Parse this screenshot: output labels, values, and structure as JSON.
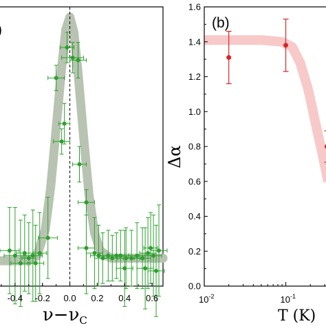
{
  "chart_data": [
    {
      "panel_label": "(a)",
      "visible_panel_label": ")",
      "type": "scatter",
      "xlabel": "ν−ν",
      "xlabel_subscript": "C",
      "xlim": [
        -0.52,
        0.68
      ],
      "ylim": [
        -0.1,
        1.0
      ],
      "x_ticks": [
        "-0.4",
        "-0.2",
        "0.0",
        "0.2",
        "0.4",
        "0.6"
      ],
      "vertical_line_x": 0.0,
      "colors": {
        "points": "#2ca02c",
        "fit": "#b8c3b2"
      },
      "fit_curve": {
        "x": [
          -0.52,
          -0.3,
          -0.24,
          -0.18,
          -0.14,
          -0.1,
          -0.06,
          -0.03,
          0.0,
          0.03,
          0.06,
          0.1,
          0.14,
          0.18,
          0.22,
          0.3,
          0.68
        ],
        "y": [
          0.0,
          0.0,
          0.02,
          0.12,
          0.29,
          0.52,
          0.76,
          0.91,
          0.96,
          0.9,
          0.74,
          0.49,
          0.26,
          0.11,
          0.04,
          0.01,
          0.01
        ]
      },
      "points": [
        {
          "x": -0.02,
          "y": 0.84,
          "xerr": 0.05,
          "yerr": 0.06
        },
        {
          "x": 0.02,
          "y": 0.8,
          "xerr": 0.08,
          "yerr": 0.06
        },
        {
          "x": 0.06,
          "y": 0.79,
          "xerr": 0.06,
          "yerr": 0.07
        },
        {
          "x": -0.1,
          "y": 0.72,
          "xerr": 0.06,
          "yerr": 0.05
        },
        {
          "x": -0.04,
          "y": 0.54,
          "xerr": 0.04,
          "yerr": 0.08
        },
        {
          "x": -0.06,
          "y": 0.47,
          "xerr": 0.06,
          "yerr": 0.05
        },
        {
          "x": 0.07,
          "y": 0.38,
          "xerr": 0.05,
          "yerr": 0.07
        },
        {
          "x": 0.12,
          "y": 0.23,
          "xerr": 0.06,
          "yerr": 0.05
        },
        {
          "x": -0.16,
          "y": 0.09,
          "xerr": 0.07,
          "yerr": 0.16
        },
        {
          "x": 0.12,
          "y": 0.05,
          "xerr": 0.06,
          "yerr": 0.18
        },
        {
          "x": -0.44,
          "y": 0.04,
          "xerr": 0.07,
          "yerr": 0.17
        },
        {
          "x": -0.4,
          "y": 0.02,
          "xerr": 0.08,
          "yerr": 0.19
        },
        {
          "x": -0.33,
          "y": 0.03,
          "xerr": 0.06,
          "yerr": 0.15
        },
        {
          "x": -0.27,
          "y": 0.02,
          "xerr": 0.07,
          "yerr": 0.18
        },
        {
          "x": -0.22,
          "y": 0.03,
          "xerr": 0.05,
          "yerr": 0.16
        },
        {
          "x": -0.36,
          "y": -0.01,
          "xerr": 0.07,
          "yerr": 0.17
        },
        {
          "x": -0.25,
          "y": -0.01,
          "xerr": 0.06,
          "yerr": 0.15
        },
        {
          "x": -0.3,
          "y": 0.01,
          "xerr": 0.05,
          "yerr": 0.14
        },
        {
          "x": 0.18,
          "y": 0.03,
          "xerr": 0.06,
          "yerr": 0.14
        },
        {
          "x": 0.21,
          "y": 0.02,
          "xerr": 0.06,
          "yerr": 0.12
        },
        {
          "x": 0.24,
          "y": 0.01,
          "xerr": 0.06,
          "yerr": 0.1
        },
        {
          "x": 0.28,
          "y": 0.02,
          "xerr": 0.06,
          "yerr": 0.1
        },
        {
          "x": 0.31,
          "y": 0.01,
          "xerr": 0.06,
          "yerr": 0.09
        },
        {
          "x": 0.34,
          "y": 0.02,
          "xerr": 0.06,
          "yerr": 0.09
        },
        {
          "x": 0.37,
          "y": 0.02,
          "xerr": 0.06,
          "yerr": 0.1
        },
        {
          "x": 0.41,
          "y": 0.01,
          "xerr": 0.06,
          "yerr": 0.12
        },
        {
          "x": 0.45,
          "y": 0.01,
          "xerr": 0.06,
          "yerr": 0.11
        },
        {
          "x": 0.49,
          "y": 0.02,
          "xerr": 0.06,
          "yerr": 0.13
        },
        {
          "x": 0.53,
          "y": 0.01,
          "xerr": 0.06,
          "yerr": 0.12
        },
        {
          "x": 0.57,
          "y": 0.03,
          "xerr": 0.06,
          "yerr": 0.14
        },
        {
          "x": 0.61,
          "y": 0.02,
          "xerr": 0.06,
          "yerr": 0.16
        },
        {
          "x": 0.65,
          "y": 0.04,
          "xerr": 0.06,
          "yerr": 0.18
        },
        {
          "x": 0.55,
          "y": -0.03,
          "xerr": 0.06,
          "yerr": 0.16
        },
        {
          "x": 0.63,
          "y": -0.04,
          "xerr": 0.06,
          "yerr": 0.18
        },
        {
          "x": 0.4,
          "y": -0.03,
          "xerr": 0.06,
          "yerr": 0.15
        },
        {
          "x": 0.59,
          "y": 0.05,
          "xerr": 0.05,
          "yerr": 0.14
        }
      ]
    },
    {
      "panel_label": "(b)",
      "type": "scatter",
      "xlabel": "T (K)",
      "ylabel": "Δα",
      "xscale": "log",
      "xlim": [
        0.01,
        0.33
      ],
      "ylim": [
        0.0,
        1.6
      ],
      "y_ticks": [
        "0.0",
        "0.2",
        "0.4",
        "0.6",
        "0.8",
        "1.0",
        "1.2",
        "1.4",
        "1.6"
      ],
      "x_ticks": [
        {
          "base": "10",
          "exp": "-2",
          "value": 0.01
        },
        {
          "base": "10",
          "exp": "-1",
          "value": 0.1
        }
      ],
      "colors": {
        "points": "#d62728",
        "fit": "#f8c9c9"
      },
      "fit_curve": {
        "x": [
          0.01,
          0.05,
          0.09,
          0.12,
          0.15,
          0.19,
          0.23,
          0.28,
          0.33
        ],
        "y": [
          1.41,
          1.41,
          1.4,
          1.37,
          1.28,
          1.12,
          0.94,
          0.76,
          0.6
        ]
      },
      "points": [
        {
          "x": 0.02,
          "y": 1.31,
          "yerr": 0.15
        },
        {
          "x": 0.1,
          "y": 1.38,
          "yerr": 0.15
        },
        {
          "x": 0.32,
          "y": 0.8,
          "yerr": 0.09
        }
      ]
    }
  ]
}
